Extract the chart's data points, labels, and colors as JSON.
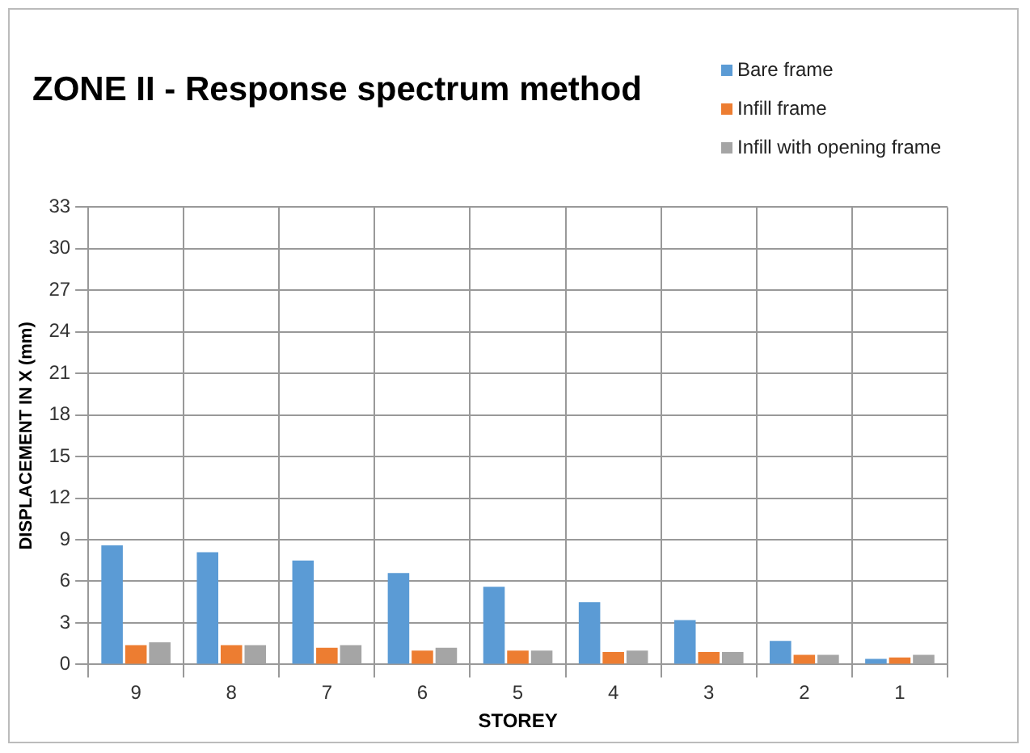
{
  "chart_data": {
    "type": "bar",
    "title": "ZONE II - Response spectrum method",
    "xlabel": "STOREY",
    "ylabel": "DISPLACEMENT IN X (mm)",
    "categories": [
      "9",
      "8",
      "7",
      "6",
      "5",
      "4",
      "3",
      "2",
      "1"
    ],
    "series": [
      {
        "name": "Bare frame",
        "color": "#5b9bd5",
        "values": [
          8.6,
          8.1,
          7.5,
          6.6,
          5.6,
          4.5,
          3.2,
          1.7,
          0.4
        ]
      },
      {
        "name": "Infill frame",
        "color": "#ed7d31",
        "values": [
          1.4,
          1.4,
          1.2,
          1.0,
          1.0,
          0.9,
          0.9,
          0.7,
          0.5
        ]
      },
      {
        "name": "Infill with opening frame",
        "color": "#a5a5a5",
        "values": [
          1.6,
          1.4,
          1.4,
          1.2,
          1.0,
          1.0,
          0.9,
          0.7,
          0.7
        ]
      }
    ],
    "ylim": [
      0,
      33
    ],
    "yticks": [
      0,
      3,
      6,
      9,
      12,
      15,
      18,
      21,
      24,
      27,
      30,
      33
    ],
    "grid": true,
    "legend": "top right"
  }
}
